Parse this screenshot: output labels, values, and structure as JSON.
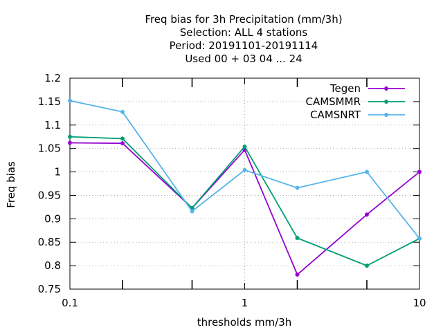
{
  "chart_data": {
    "type": "line",
    "title_lines": [
      "Freq bias  for 3h Precipitation (mm/3h)",
      "Selection: ALL      4 stations",
      "Period: 20191101-20191114",
      "Used  00 + 03 04 ... 24"
    ],
    "xlabel": "thresholds mm/3h",
    "ylabel": "Freq bias",
    "x_scale": "log",
    "xlim": [
      0.1,
      10
    ],
    "ylim": [
      0.75,
      1.2
    ],
    "x_ticks": [
      0.1,
      1,
      10
    ],
    "x_tick_labels": [
      "0.1",
      "1",
      "10"
    ],
    "x_minor_ticks": [
      0.2,
      0.5,
      2,
      5
    ],
    "y_ticks": [
      0.75,
      0.8,
      0.85,
      0.9,
      0.95,
      1,
      1.05,
      1.1,
      1.15,
      1.2
    ],
    "y_tick_labels": [
      "0.75",
      "0.8",
      "0.85",
      "0.9",
      "0.95",
      "1",
      "1.05",
      "1.1",
      "1.15",
      "1.2"
    ],
    "grid": true,
    "legend_position": "top-right",
    "x": [
      0.1,
      0.2,
      0.5,
      1,
      2,
      5,
      10
    ],
    "series": [
      {
        "name": "Tegen",
        "color": "#9400d3",
        "values": [
          1.062,
          1.061,
          0.923,
          1.047,
          0.781,
          0.909,
          1.0
        ]
      },
      {
        "name": "CAMSMMR",
        "color": "#009e73",
        "values": [
          1.075,
          1.071,
          0.923,
          1.054,
          0.859,
          0.8,
          0.858
        ]
      },
      {
        "name": "CAMSNRT",
        "color": "#56b4e9",
        "values": [
          1.152,
          1.128,
          0.916,
          1.004,
          0.966,
          1.0,
          0.858
        ]
      }
    ]
  }
}
